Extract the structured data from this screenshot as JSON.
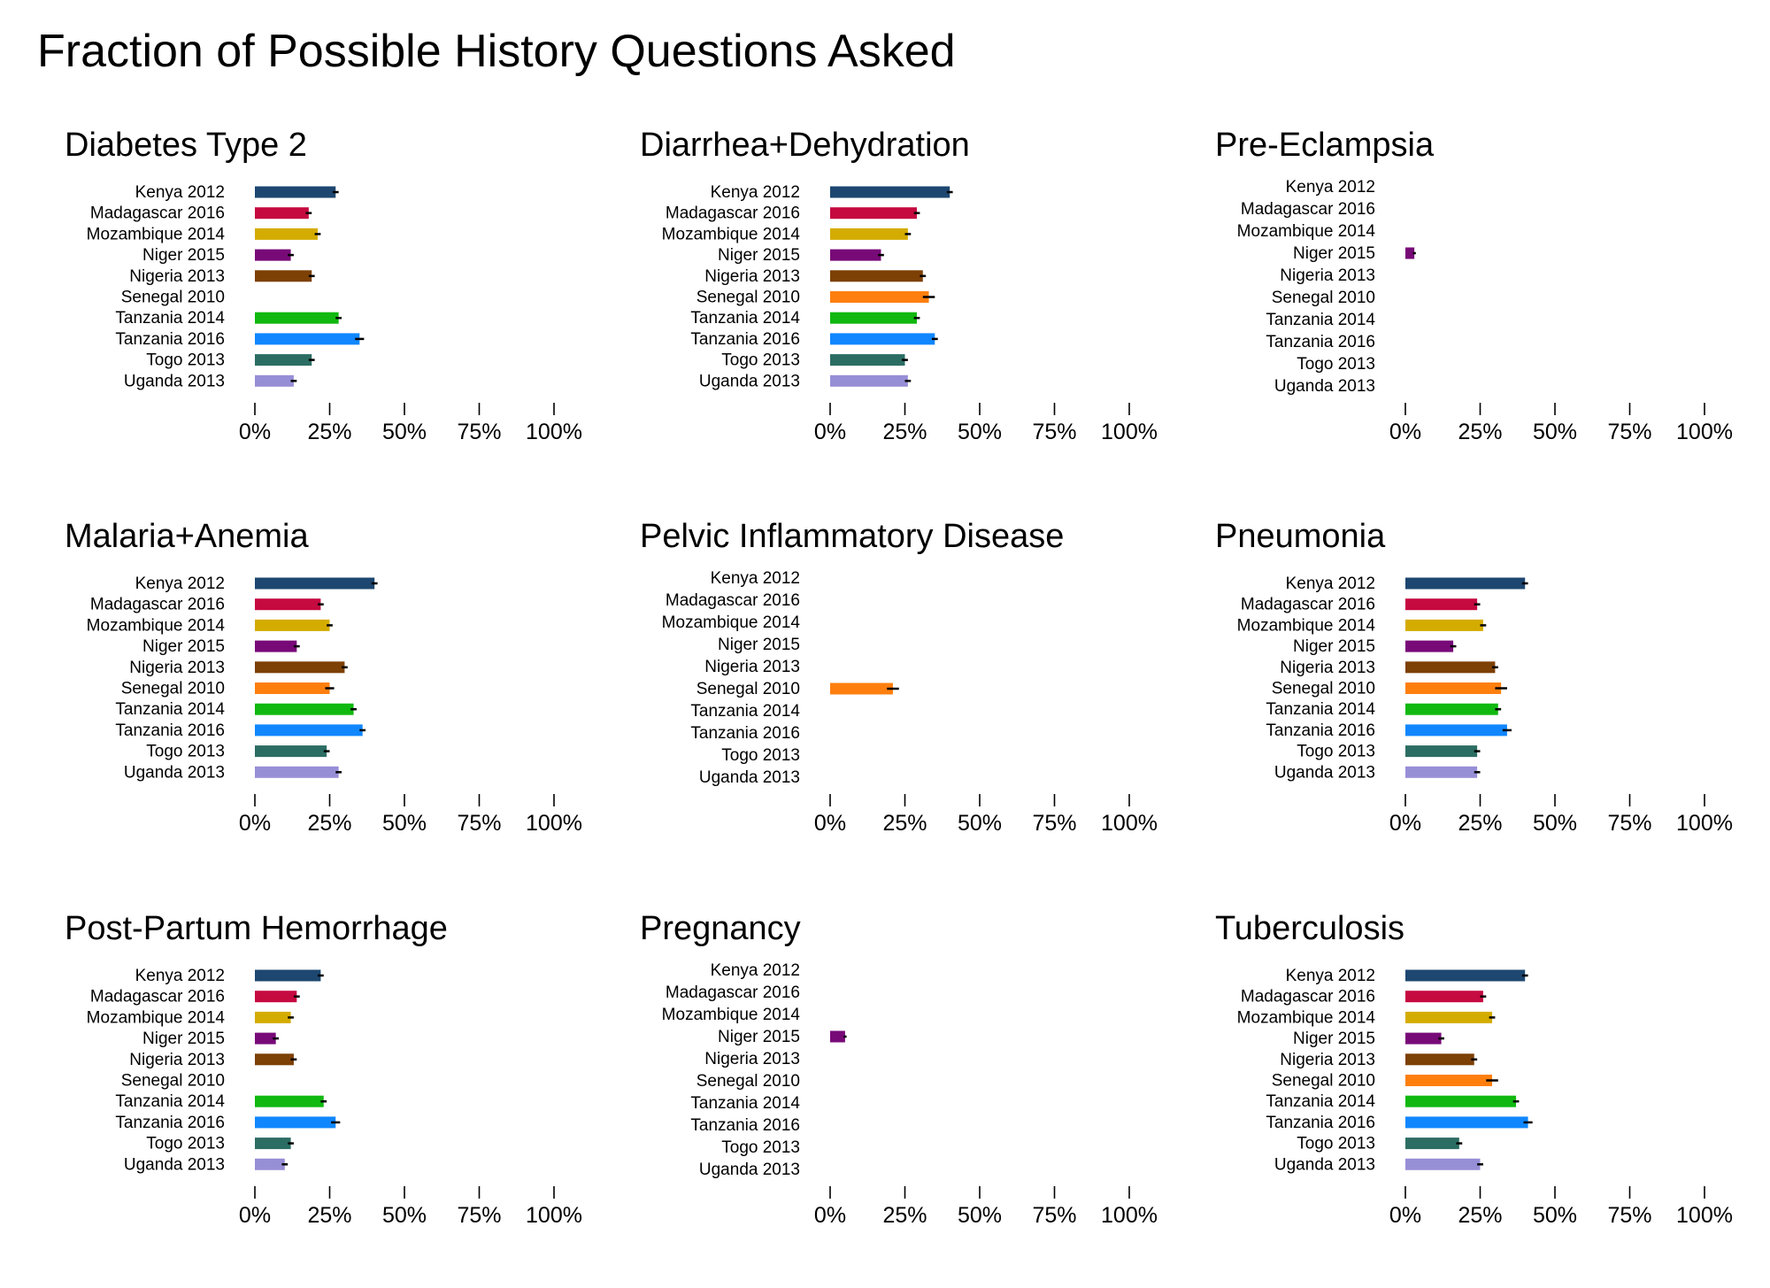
{
  "title": "Fraction of Possible History Questions Asked",
  "colors": {
    "Kenya 2012": "#1d4770",
    "Madagascar 2016": "#c50a40",
    "Mozambique 2014": "#d4ac00",
    "Niger 2015": "#780a78",
    "Nigeria 2013": "#7d4005",
    "Senegal 2010": "#ff7f0e",
    "Tanzania 2014": "#10b810",
    "Tanzania 2016": "#1087ff",
    "Togo 2013": "#2c6d63",
    "Uganda 2013": "#978fd6"
  },
  "chart_data": [
    {
      "type": "bar",
      "orientation": "horizontal",
      "title": "Diabetes Type 2",
      "categories": [
        "Kenya 2012",
        "Madagascar 2016",
        "Mozambique 2014",
        "Niger 2015",
        "Nigeria 2013",
        "Senegal 2010",
        "Tanzania 2014",
        "Tanzania 2016",
        "Togo 2013",
        "Uganda 2013"
      ],
      "values": [
        0.27,
        0.18,
        0.21,
        0.12,
        0.19,
        null,
        0.28,
        0.35,
        0.19,
        0.13
      ],
      "error": [
        0.01,
        0.01,
        0.01,
        0.01,
        0.01,
        null,
        0.01,
        0.015,
        0.01,
        0.01
      ],
      "xticks": [
        "0%",
        "25%",
        "50%",
        "75%",
        "100%"
      ],
      "xlim": [
        0,
        1
      ]
    },
    {
      "type": "bar",
      "orientation": "horizontal",
      "title": "Diarrhea+Dehydration",
      "categories": [
        "Kenya 2012",
        "Madagascar 2016",
        "Mozambique 2014",
        "Niger 2015",
        "Nigeria 2013",
        "Senegal 2010",
        "Tanzania 2014",
        "Tanzania 2016",
        "Togo 2013",
        "Uganda 2013"
      ],
      "values": [
        0.4,
        0.29,
        0.26,
        0.17,
        0.31,
        0.33,
        0.29,
        0.35,
        0.25,
        0.26
      ],
      "error": [
        0.01,
        0.01,
        0.01,
        0.01,
        0.01,
        0.02,
        0.01,
        0.01,
        0.01,
        0.01
      ],
      "xticks": [
        "0%",
        "25%",
        "50%",
        "75%",
        "100%"
      ],
      "xlim": [
        0,
        1
      ]
    },
    {
      "type": "bar",
      "orientation": "horizontal",
      "title": "Pre-Eclampsia",
      "categories": [
        "Kenya 2012",
        "Madagascar 2016",
        "Mozambique 2014",
        "Niger 2015",
        "Nigeria 2013",
        "Senegal 2010",
        "Tanzania 2014",
        "Tanzania 2016",
        "Togo 2013",
        "Uganda 2013"
      ],
      "values": [
        null,
        null,
        null,
        0.03,
        null,
        null,
        null,
        null,
        null,
        null
      ],
      "error": [
        null,
        null,
        null,
        0.005,
        null,
        null,
        null,
        null,
        null,
        null
      ],
      "xticks": [
        "0%",
        "25%",
        "50%",
        "75%",
        "100%"
      ],
      "xlim": [
        0,
        1
      ]
    },
    {
      "type": "bar",
      "orientation": "horizontal",
      "title": "Malaria+Anemia",
      "categories": [
        "Kenya 2012",
        "Madagascar 2016",
        "Mozambique 2014",
        "Niger 2015",
        "Nigeria 2013",
        "Senegal 2010",
        "Tanzania 2014",
        "Tanzania 2016",
        "Togo 2013",
        "Uganda 2013"
      ],
      "values": [
        0.4,
        0.22,
        0.25,
        0.14,
        0.3,
        0.25,
        0.33,
        0.36,
        0.24,
        0.28
      ],
      "error": [
        0.01,
        0.01,
        0.01,
        0.01,
        0.01,
        0.015,
        0.01,
        0.01,
        0.01,
        0.01
      ],
      "xticks": [
        "0%",
        "25%",
        "50%",
        "75%",
        "100%"
      ],
      "xlim": [
        0,
        1
      ]
    },
    {
      "type": "bar",
      "orientation": "horizontal",
      "title": "Pelvic Inflammatory Disease",
      "categories": [
        "Kenya 2012",
        "Madagascar 2016",
        "Mozambique 2014",
        "Niger 2015",
        "Nigeria 2013",
        "Senegal 2010",
        "Tanzania 2014",
        "Tanzania 2016",
        "Togo 2013",
        "Uganda 2013"
      ],
      "values": [
        null,
        null,
        null,
        null,
        null,
        0.21,
        null,
        null,
        null,
        null
      ],
      "error": [
        null,
        null,
        null,
        null,
        null,
        0.02,
        null,
        null,
        null,
        null
      ],
      "xticks": [
        "0%",
        "25%",
        "50%",
        "75%",
        "100%"
      ],
      "xlim": [
        0,
        1
      ]
    },
    {
      "type": "bar",
      "orientation": "horizontal",
      "title": "Pneumonia",
      "categories": [
        "Kenya 2012",
        "Madagascar 2016",
        "Mozambique 2014",
        "Niger 2015",
        "Nigeria 2013",
        "Senegal 2010",
        "Tanzania 2014",
        "Tanzania 2016",
        "Togo 2013",
        "Uganda 2013"
      ],
      "values": [
        0.4,
        0.24,
        0.26,
        0.16,
        0.3,
        0.32,
        0.31,
        0.34,
        0.24,
        0.24
      ],
      "error": [
        0.01,
        0.01,
        0.01,
        0.01,
        0.01,
        0.02,
        0.01,
        0.015,
        0.01,
        0.01
      ],
      "xticks": [
        "0%",
        "25%",
        "50%",
        "75%",
        "100%"
      ],
      "xlim": [
        0,
        1
      ]
    },
    {
      "type": "bar",
      "orientation": "horizontal",
      "title": "Post-Partum Hemorrhage",
      "categories": [
        "Kenya 2012",
        "Madagascar 2016",
        "Mozambique 2014",
        "Niger 2015",
        "Nigeria 2013",
        "Senegal 2010",
        "Tanzania 2014",
        "Tanzania 2016",
        "Togo 2013",
        "Uganda 2013"
      ],
      "values": [
        0.22,
        0.14,
        0.12,
        0.07,
        0.13,
        null,
        0.23,
        0.27,
        0.12,
        0.1
      ],
      "error": [
        0.01,
        0.01,
        0.01,
        0.01,
        0.01,
        null,
        0.01,
        0.015,
        0.01,
        0.01
      ],
      "xticks": [
        "0%",
        "25%",
        "50%",
        "75%",
        "100%"
      ],
      "xlim": [
        0,
        1
      ]
    },
    {
      "type": "bar",
      "orientation": "horizontal",
      "title": "Pregnancy",
      "categories": [
        "Kenya 2012",
        "Madagascar 2016",
        "Mozambique 2014",
        "Niger 2015",
        "Nigeria 2013",
        "Senegal 2010",
        "Tanzania 2014",
        "Tanzania 2016",
        "Togo 2013",
        "Uganda 2013"
      ],
      "values": [
        null,
        null,
        null,
        0.05,
        null,
        null,
        null,
        null,
        null,
        null
      ],
      "error": [
        null,
        null,
        null,
        0.005,
        null,
        null,
        null,
        null,
        null,
        null
      ],
      "xticks": [
        "0%",
        "25%",
        "50%",
        "75%",
        "100%"
      ],
      "xlim": [
        0,
        1
      ]
    },
    {
      "type": "bar",
      "orientation": "horizontal",
      "title": "Tuberculosis",
      "categories": [
        "Kenya 2012",
        "Madagascar 2016",
        "Mozambique 2014",
        "Niger 2015",
        "Nigeria 2013",
        "Senegal 2010",
        "Tanzania 2014",
        "Tanzania 2016",
        "Togo 2013",
        "Uganda 2013"
      ],
      "values": [
        0.4,
        0.26,
        0.29,
        0.12,
        0.23,
        0.29,
        0.37,
        0.41,
        0.18,
        0.25
      ],
      "error": [
        0.01,
        0.01,
        0.01,
        0.01,
        0.01,
        0.02,
        0.01,
        0.015,
        0.01,
        0.01
      ],
      "xticks": [
        "0%",
        "25%",
        "50%",
        "75%",
        "100%"
      ],
      "xlim": [
        0,
        1
      ]
    }
  ]
}
